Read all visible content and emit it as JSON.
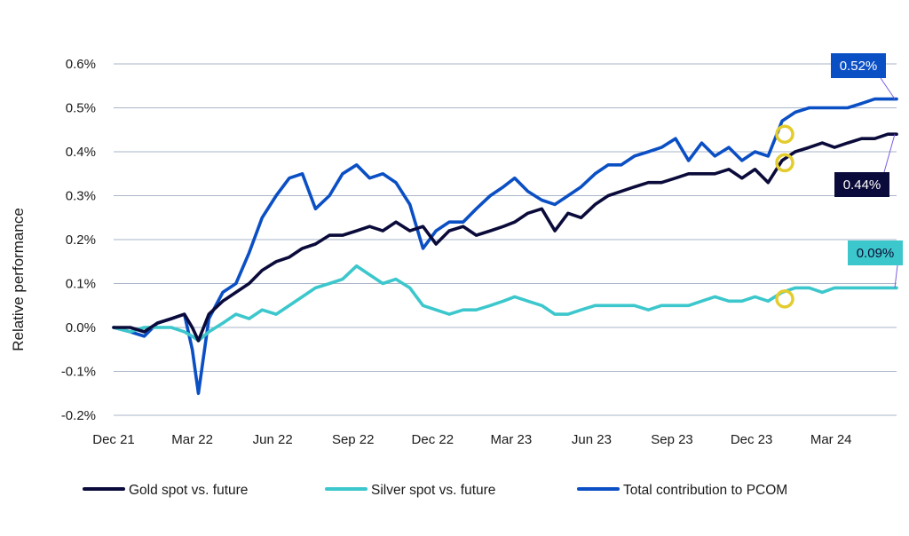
{
  "chart_data": {
    "type": "line",
    "xlabel": "",
    "ylabel": "Relative performance",
    "ylim": [
      -0.2,
      0.6
    ],
    "yticks": [
      -0.2,
      -0.1,
      0.0,
      0.1,
      0.2,
      0.3,
      0.4,
      0.5,
      0.6
    ],
    "ytick_labels": [
      "-0.2%",
      "-0.1%",
      "0.0%",
      "0.1%",
      "0.2%",
      "0.3%",
      "0.4%",
      "0.5%",
      "0.6%"
    ],
    "xticks": [
      "2021-12-01",
      "2022-03-01",
      "2022-06-01",
      "2022-09-01",
      "2022-12-01",
      "2023-03-01",
      "2023-06-01",
      "2023-09-01",
      "2023-12-01",
      "2024-03-01"
    ],
    "xtick_labels": [
      "Dec 21",
      "Mar 22",
      "Jun 22",
      "Sep 22",
      "Dec 22",
      "Mar 23",
      "Jun 23",
      "Sep 23",
      "Dec 23",
      "Mar 24"
    ],
    "xlim": [
      "2021-12-01",
      "2024-05-15"
    ],
    "grid": "horizontal",
    "legend_position": "bottom",
    "series": [
      {
        "name": "Gold spot vs. future",
        "color": "#0b0b3b",
        "x": [
          "2021-12-01",
          "2021-12-20",
          "2022-01-05",
          "2022-01-20",
          "2022-02-05",
          "2022-02-20",
          "2022-03-01",
          "2022-03-08",
          "2022-03-20",
          "2022-04-05",
          "2022-04-20",
          "2022-05-05",
          "2022-05-20",
          "2022-06-05",
          "2022-06-20",
          "2022-07-05",
          "2022-07-20",
          "2022-08-05",
          "2022-08-20",
          "2022-09-05",
          "2022-09-20",
          "2022-10-05",
          "2022-10-20",
          "2022-11-05",
          "2022-11-20",
          "2022-12-05",
          "2022-12-20",
          "2023-01-05",
          "2023-01-20",
          "2023-02-05",
          "2023-02-20",
          "2023-03-05",
          "2023-03-20",
          "2023-04-05",
          "2023-04-20",
          "2023-05-05",
          "2023-05-20",
          "2023-06-05",
          "2023-06-20",
          "2023-07-05",
          "2023-07-20",
          "2023-08-05",
          "2023-08-20",
          "2023-09-05",
          "2023-09-20",
          "2023-10-05",
          "2023-10-20",
          "2023-11-05",
          "2023-11-20",
          "2023-12-05",
          "2023-12-20",
          "2024-01-05",
          "2024-01-20",
          "2024-02-05",
          "2024-02-20",
          "2024-03-05",
          "2024-03-20",
          "2024-04-05",
          "2024-04-20",
          "2024-05-05",
          "2024-05-15"
        ],
        "values": [
          0.0,
          0.0,
          -0.01,
          0.01,
          0.02,
          0.03,
          0.0,
          -0.03,
          0.03,
          0.06,
          0.08,
          0.1,
          0.13,
          0.15,
          0.16,
          0.18,
          0.19,
          0.21,
          0.21,
          0.22,
          0.23,
          0.22,
          0.24,
          0.22,
          0.23,
          0.19,
          0.22,
          0.23,
          0.21,
          0.22,
          0.23,
          0.24,
          0.26,
          0.27,
          0.22,
          0.26,
          0.25,
          0.28,
          0.3,
          0.31,
          0.32,
          0.33,
          0.33,
          0.34,
          0.35,
          0.35,
          0.35,
          0.36,
          0.34,
          0.36,
          0.33,
          0.38,
          0.4,
          0.41,
          0.42,
          0.41,
          0.42,
          0.43,
          0.43,
          0.44,
          0.44
        ]
      },
      {
        "name": "Silver spot vs. future",
        "color": "#3cc7cc",
        "x": [
          "2021-12-01",
          "2021-12-20",
          "2022-01-05",
          "2022-01-20",
          "2022-02-05",
          "2022-02-20",
          "2022-03-01",
          "2022-03-08",
          "2022-03-20",
          "2022-04-05",
          "2022-04-20",
          "2022-05-05",
          "2022-05-20",
          "2022-06-05",
          "2022-06-20",
          "2022-07-05",
          "2022-07-20",
          "2022-08-05",
          "2022-08-20",
          "2022-09-05",
          "2022-09-20",
          "2022-10-05",
          "2022-10-20",
          "2022-11-05",
          "2022-11-20",
          "2022-12-05",
          "2022-12-20",
          "2023-01-05",
          "2023-01-20",
          "2023-02-05",
          "2023-02-20",
          "2023-03-05",
          "2023-03-20",
          "2023-04-05",
          "2023-04-20",
          "2023-05-05",
          "2023-05-20",
          "2023-06-05",
          "2023-06-20",
          "2023-07-05",
          "2023-07-20",
          "2023-08-05",
          "2023-08-20",
          "2023-09-05",
          "2023-09-20",
          "2023-10-05",
          "2023-10-20",
          "2023-11-05",
          "2023-11-20",
          "2023-12-05",
          "2023-12-20",
          "2024-01-05",
          "2024-01-20",
          "2024-02-05",
          "2024-02-20",
          "2024-03-05",
          "2024-03-20",
          "2024-04-05",
          "2024-04-20",
          "2024-05-05",
          "2024-05-15"
        ],
        "values": [
          0.0,
          -0.01,
          0.0,
          0.0,
          0.0,
          -0.01,
          -0.02,
          -0.03,
          -0.01,
          0.01,
          0.03,
          0.02,
          0.04,
          0.03,
          0.05,
          0.07,
          0.09,
          0.1,
          0.11,
          0.14,
          0.12,
          0.1,
          0.11,
          0.09,
          0.05,
          0.04,
          0.03,
          0.04,
          0.04,
          0.05,
          0.06,
          0.07,
          0.06,
          0.05,
          0.03,
          0.03,
          0.04,
          0.05,
          0.05,
          0.05,
          0.05,
          0.04,
          0.05,
          0.05,
          0.05,
          0.06,
          0.07,
          0.06,
          0.06,
          0.07,
          0.06,
          0.08,
          0.09,
          0.09,
          0.08,
          0.09,
          0.09,
          0.09,
          0.09,
          0.09,
          0.09
        ]
      },
      {
        "name": "Total contribution to PCOM",
        "color": "#0b4fc4",
        "x": [
          "2021-12-01",
          "2021-12-20",
          "2022-01-05",
          "2022-01-20",
          "2022-02-05",
          "2022-02-20",
          "2022-03-01",
          "2022-03-08",
          "2022-03-20",
          "2022-04-05",
          "2022-04-20",
          "2022-05-05",
          "2022-05-20",
          "2022-06-05",
          "2022-06-20",
          "2022-07-05",
          "2022-07-20",
          "2022-08-05",
          "2022-08-20",
          "2022-09-05",
          "2022-09-20",
          "2022-10-05",
          "2022-10-20",
          "2022-11-05",
          "2022-11-20",
          "2022-12-05",
          "2022-12-20",
          "2023-01-05",
          "2023-01-20",
          "2023-02-05",
          "2023-02-20",
          "2023-03-05",
          "2023-03-20",
          "2023-04-05",
          "2023-04-20",
          "2023-05-05",
          "2023-05-20",
          "2023-06-05",
          "2023-06-20",
          "2023-07-05",
          "2023-07-20",
          "2023-08-05",
          "2023-08-20",
          "2023-09-05",
          "2023-09-20",
          "2023-10-05",
          "2023-10-20",
          "2023-11-05",
          "2023-11-20",
          "2023-12-05",
          "2023-12-20",
          "2024-01-05",
          "2024-01-20",
          "2024-02-05",
          "2024-02-20",
          "2024-03-05",
          "2024-03-20",
          "2024-04-05",
          "2024-04-20",
          "2024-05-05",
          "2024-05-15"
        ],
        "values": [
          0.0,
          -0.01,
          -0.02,
          0.01,
          0.02,
          0.03,
          -0.05,
          -0.15,
          0.02,
          0.08,
          0.1,
          0.17,
          0.25,
          0.3,
          0.34,
          0.35,
          0.27,
          0.3,
          0.35,
          0.37,
          0.34,
          0.35,
          0.33,
          0.28,
          0.18,
          0.22,
          0.24,
          0.24,
          0.27,
          0.3,
          0.32,
          0.34,
          0.31,
          0.29,
          0.28,
          0.3,
          0.32,
          0.35,
          0.37,
          0.37,
          0.39,
          0.4,
          0.41,
          0.43,
          0.38,
          0.42,
          0.39,
          0.41,
          0.38,
          0.4,
          0.39,
          0.47,
          0.49,
          0.5,
          0.5,
          0.5,
          0.5,
          0.51,
          0.52,
          0.52,
          0.52
        ]
      }
    ],
    "annotations": [
      {
        "series": "Total contribution to PCOM",
        "label": "0.52%",
        "color": "#0b4fc4"
      },
      {
        "series": "Gold spot vs. future",
        "label": "0.44%",
        "color": "#0b0b3b"
      },
      {
        "series": "Silver spot vs. future",
        "label": "0.09%",
        "color": "#3cc7cc"
      }
    ],
    "markers": [
      {
        "series": "Total contribution to PCOM",
        "x": "2024-01-08",
        "y": 0.44,
        "color": "#e3cc2e"
      },
      {
        "series": "Gold spot vs. future",
        "x": "2024-01-08",
        "y": 0.375,
        "color": "#e3cc2e"
      },
      {
        "series": "Silver spot vs. future",
        "x": "2024-01-08",
        "y": 0.065,
        "color": "#e3cc2e"
      }
    ],
    "gridline_color": "#a9b6c7"
  }
}
